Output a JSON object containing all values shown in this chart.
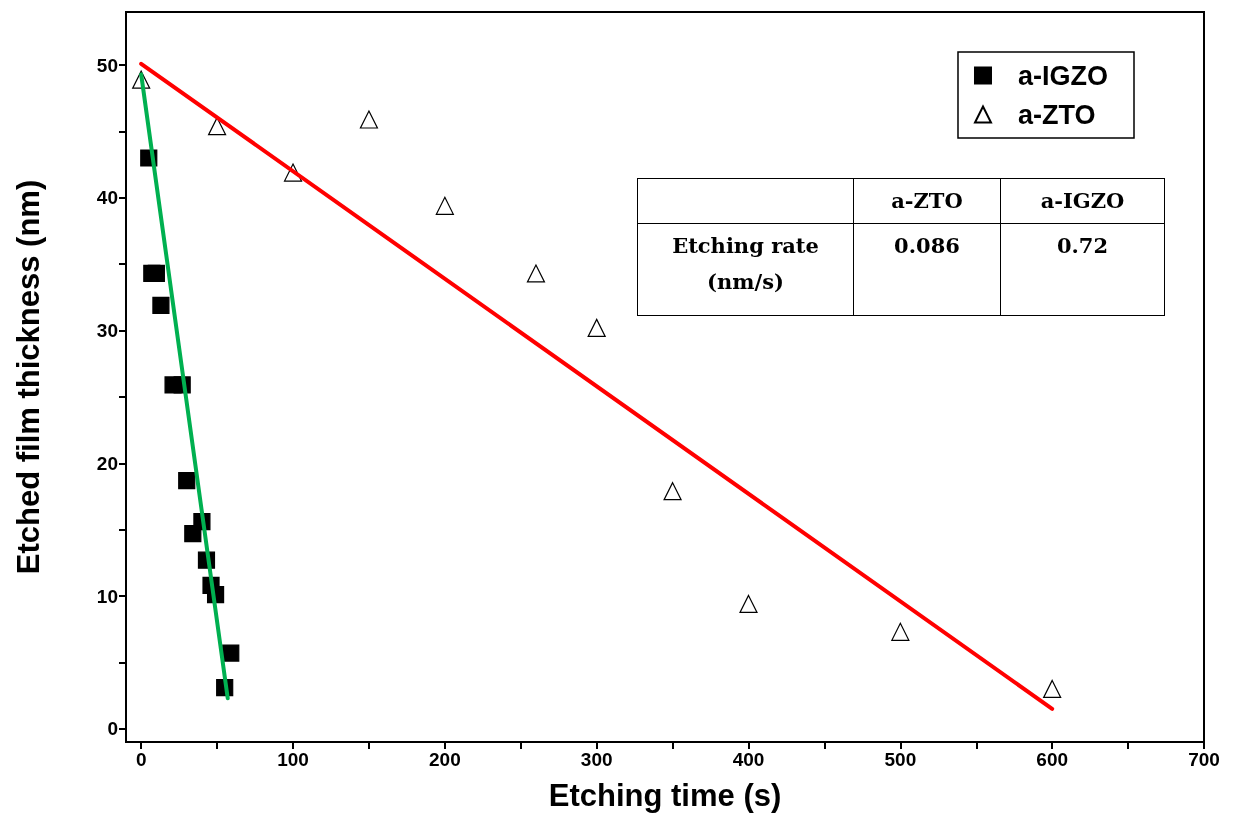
{
  "chart_data": {
    "type": "scatter",
    "xlabel": "Etching time (s)",
    "ylabel": "Etched film thickness (nm)",
    "xlim": [
      -10,
      700
    ],
    "xticks": [
      0,
      100,
      200,
      300,
      400,
      500,
      600,
      700
    ],
    "ylim": [
      -1,
      54
    ],
    "yticks": [
      0,
      10,
      20,
      30,
      40,
      50
    ],
    "grid": false,
    "legend": "top right",
    "series": [
      {
        "name": "a-IGZO",
        "marker": "square",
        "color": "#000000",
        "x": [
          5,
          7,
          10,
          13,
          21,
          27,
          30,
          34,
          40,
          43,
          46,
          49,
          59,
          55
        ],
        "values": [
          43.0,
          34.3,
          34.3,
          31.9,
          25.9,
          25.9,
          18.7,
          14.7,
          15.6,
          12.7,
          10.8,
          10.1,
          5.7,
          3.1
        ]
      },
      {
        "name": "a-ZTO",
        "marker": "triangle",
        "color": "#000000",
        "x": [
          0,
          50,
          100,
          150,
          200,
          260,
          300,
          350,
          400,
          500,
          600
        ],
        "values": [
          48.9,
          45.4,
          41.9,
          45.9,
          39.4,
          34.3,
          30.2,
          17.9,
          9.4,
          7.3,
          3.0
        ]
      },
      {
        "type": "line",
        "marker": "none",
        "line_style": "solid",
        "color": "#ff0000",
        "x": [
          0,
          600
        ],
        "values": [
          50.1,
          1.5
        ]
      },
      {
        "type": "line",
        "marker": "none",
        "line_style": "solid",
        "color": "#00b050",
        "x": [
          0,
          57
        ],
        "values": [
          49.3,
          2.3
        ]
      }
    ],
    "annotations": [
      "a-ZTO",
      "a-IGZO",
      "Etching rate (nm/s)",
      "0.086",
      "0.72"
    ]
  }
}
